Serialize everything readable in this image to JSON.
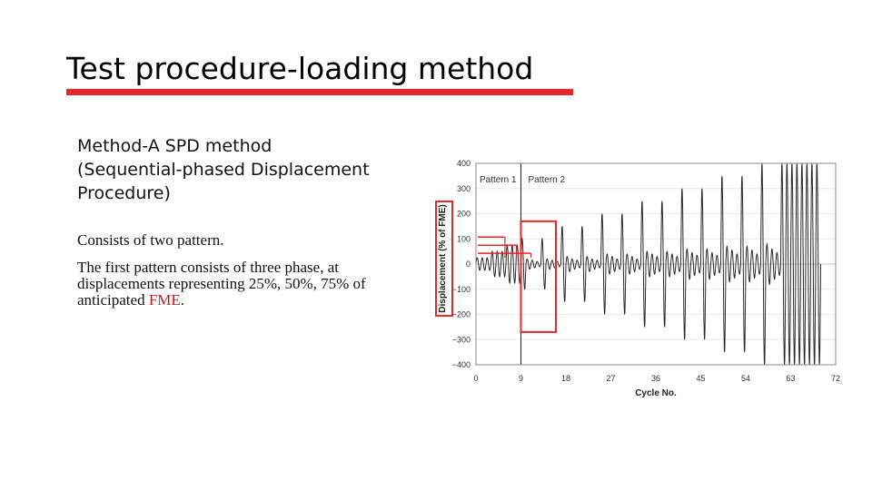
{
  "slide": {
    "title": "Test procedure-loading method",
    "accent_color": "#e8262b",
    "method_lines": [
      "Method-A  SPD method",
      "(Sequential-phased Displacement",
      "Procedure)"
    ],
    "para1": "Consists of two pattern.",
    "para2_before": "The first pattern consists of three phase, at displacements representing 25%, 50%, 75% of anticipated ",
    "para2_highlight": "FME",
    "para2_after": ".",
    "highlight_color": "#c0171c"
  },
  "chart_data": {
    "type": "line",
    "xlabel": "Cycle No.",
    "ylabel": "Displacement (% of FME)",
    "xlim": [
      0,
      72
    ],
    "ylim": [
      -400,
      400
    ],
    "x_ticks": [
      "0",
      "9",
      "18",
      "27",
      "36",
      "45",
      "54",
      "63",
      "72"
    ],
    "y_ticks": [
      "400",
      "300",
      "200",
      "100",
      "0",
      "−100",
      "−200",
      "−300",
      "−400"
    ],
    "annotations": [
      "Pattern 1",
      "Pattern 2"
    ],
    "pattern_boundary_cycle": 9,
    "pattern1_levels_pct_of_FME": [
      25,
      50,
      75
    ],
    "approx_cycle_amplitudes_pct_of_FME": [
      25,
      25,
      25,
      50,
      50,
      50,
      75,
      75,
      75,
      100,
      20,
      15,
      10,
      100,
      20,
      15,
      10,
      150,
      30,
      20,
      15,
      150,
      30,
      20,
      15,
      200,
      40,
      30,
      20,
      200,
      40,
      30,
      20,
      250,
      50,
      40,
      30,
      250,
      50,
      40,
      30,
      300,
      60,
      45,
      35,
      300,
      60,
      45,
      35,
      350,
      70,
      55,
      40,
      350,
      70,
      55,
      40,
      400,
      80,
      60,
      45,
      400,
      400,
      400,
      400,
      400,
      400,
      400,
      400
    ],
    "grid": true
  }
}
